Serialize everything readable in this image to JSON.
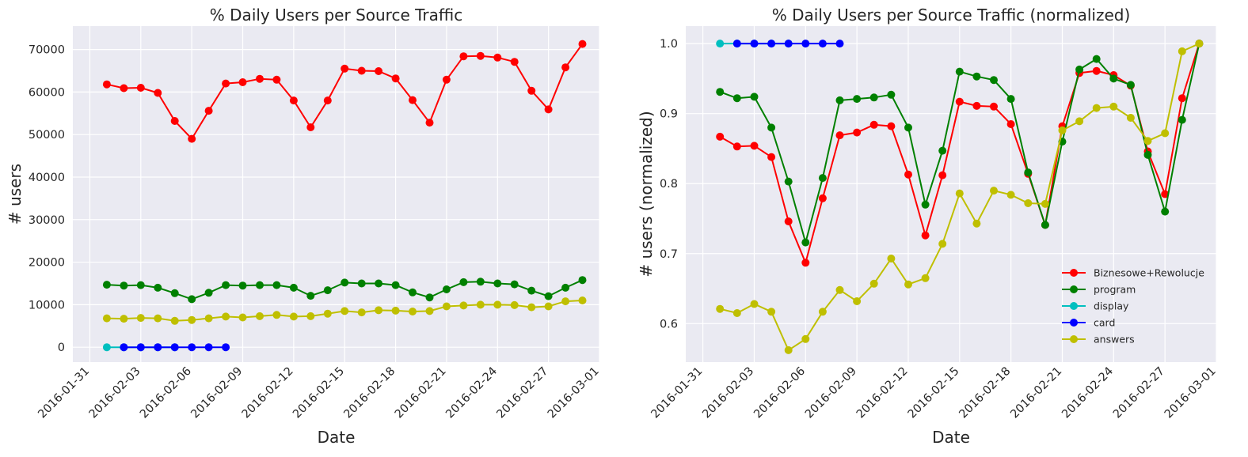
{
  "chart_data": [
    {
      "type": "line",
      "title": "% Daily Users per Source Traffic",
      "xlabel": "Date",
      "ylabel": "# users",
      "ylim": [
        -3500,
        75500
      ],
      "xlim": [
        "2016-01-30",
        "2016-03-01"
      ],
      "yticks": [
        "0",
        "10000",
        "20000",
        "30000",
        "40000",
        "50000",
        "60000",
        "70000"
      ],
      "ytick_values": [
        0,
        10000,
        20000,
        30000,
        40000,
        50000,
        60000,
        70000
      ],
      "xticks": [
        "2016-01-31",
        "2016-02-03",
        "2016-02-06",
        "2016-02-09",
        "2016-02-12",
        "2016-02-15",
        "2016-02-18",
        "2016-02-21",
        "2016-02-24",
        "2016-02-27",
        "2016-03-01"
      ],
      "grid": true,
      "legend": "none",
      "series": [
        {
          "color": "#FF0000",
          "x": [
            "2016-02-01",
            "2016-02-02",
            "2016-02-03",
            "2016-02-04",
            "2016-02-05",
            "2016-02-06",
            "2016-02-07",
            "2016-02-08",
            "2016-02-09",
            "2016-02-10",
            "2016-02-11",
            "2016-02-12",
            "2016-02-13",
            "2016-02-14",
            "2016-02-15",
            "2016-02-16",
            "2016-02-17",
            "2016-02-18",
            "2016-02-19",
            "2016-02-20",
            "2016-02-21",
            "2016-02-22",
            "2016-02-23",
            "2016-02-24",
            "2016-02-25",
            "2016-02-26",
            "2016-02-27",
            "2016-02-28",
            "2016-02-29"
          ],
          "values": [
            61800,
            60900,
            61000,
            59800,
            53200,
            49000,
            55600,
            62000,
            62300,
            63100,
            62900,
            58000,
            51700,
            58000,
            65500,
            65000,
            64900,
            63200,
            58100,
            52800,
            62900,
            68400,
            68500,
            68100,
            67100,
            60300,
            55900,
            65800,
            71300
          ]
        },
        {
          "color": "#008000",
          "x": [
            "2016-02-01",
            "2016-02-02",
            "2016-02-03",
            "2016-02-04",
            "2016-02-05",
            "2016-02-06",
            "2016-02-07",
            "2016-02-08",
            "2016-02-09",
            "2016-02-10",
            "2016-02-11",
            "2016-02-12",
            "2016-02-13",
            "2016-02-14",
            "2016-02-15",
            "2016-02-16",
            "2016-02-17",
            "2016-02-18",
            "2016-02-19",
            "2016-02-20",
            "2016-02-21",
            "2016-02-22",
            "2016-02-23",
            "2016-02-24",
            "2016-02-25",
            "2016-02-26",
            "2016-02-27",
            "2016-02-28",
            "2016-02-29"
          ],
          "values": [
            14700,
            14500,
            14600,
            14000,
            12700,
            11300,
            12800,
            14600,
            14500,
            14600,
            14600,
            14000,
            12100,
            13400,
            15200,
            15000,
            15000,
            14600,
            12900,
            11700,
            13600,
            15300,
            15400,
            15000,
            14800,
            13300,
            12000,
            14000,
            15800
          ]
        },
        {
          "color": "#00BFBF",
          "x": [
            "2016-02-01",
            "2016-02-02",
            "2016-02-03",
            "2016-02-04",
            "2016-02-05"
          ],
          "values": [
            0,
            0,
            0,
            0,
            0
          ]
        },
        {
          "color": "#0000FF",
          "x": [
            "2016-02-02",
            "2016-02-03",
            "2016-02-04",
            "2016-02-05",
            "2016-02-06",
            "2016-02-07",
            "2016-02-08"
          ],
          "values": [
            0,
            0,
            0,
            0,
            0,
            0,
            0
          ]
        },
        {
          "color": "#BFBF00",
          "x": [
            "2016-02-01",
            "2016-02-02",
            "2016-02-03",
            "2016-02-04",
            "2016-02-05",
            "2016-02-06",
            "2016-02-07",
            "2016-02-08",
            "2016-02-09",
            "2016-02-10",
            "2016-02-11",
            "2016-02-12",
            "2016-02-13",
            "2016-02-14",
            "2016-02-15",
            "2016-02-16",
            "2016-02-17",
            "2016-02-18",
            "2016-02-19",
            "2016-02-20",
            "2016-02-21",
            "2016-02-22",
            "2016-02-23",
            "2016-02-24",
            "2016-02-25",
            "2016-02-26",
            "2016-02-27",
            "2016-02-28",
            "2016-02-29"
          ],
          "values": [
            6800,
            6700,
            6900,
            6800,
            6200,
            6400,
            6800,
            7200,
            7000,
            7300,
            7600,
            7200,
            7300,
            7900,
            8500,
            8200,
            8700,
            8600,
            8400,
            8500,
            9600,
            9800,
            10000,
            10000,
            9900,
            9400,
            9600,
            10800,
            11000
          ]
        }
      ]
    },
    {
      "type": "line",
      "title": "% Daily Users per Source Traffic (normalized)",
      "xlabel": "Date",
      "ylabel": "# users (normalized)",
      "ylim": [
        0.545,
        1.025
      ],
      "xlim": [
        "2016-01-30",
        "2016-03-01"
      ],
      "yticks": [
        "0.6",
        "0.7",
        "0.8",
        "0.9",
        "1.0"
      ],
      "ytick_values": [
        0.6,
        0.7,
        0.8,
        0.9,
        1.0
      ],
      "xticks": [
        "2016-01-31",
        "2016-02-03",
        "2016-02-06",
        "2016-02-09",
        "2016-02-12",
        "2016-02-15",
        "2016-02-18",
        "2016-02-21",
        "2016-02-24",
        "2016-02-27",
        "2016-03-01"
      ],
      "grid": true,
      "legend": "lower-right",
      "series": [
        {
          "name": "Biznesowe+Rewolucje",
          "color": "#FF0000",
          "x": [
            "2016-02-01",
            "2016-02-02",
            "2016-02-03",
            "2016-02-04",
            "2016-02-05",
            "2016-02-06",
            "2016-02-07",
            "2016-02-08",
            "2016-02-09",
            "2016-02-10",
            "2016-02-11",
            "2016-02-12",
            "2016-02-13",
            "2016-02-14",
            "2016-02-15",
            "2016-02-16",
            "2016-02-17",
            "2016-02-18",
            "2016-02-19",
            "2016-02-20",
            "2016-02-21",
            "2016-02-22",
            "2016-02-23",
            "2016-02-24",
            "2016-02-25",
            "2016-02-26",
            "2016-02-27",
            "2016-02-28",
            "2016-02-29"
          ],
          "values": [
            0.867,
            0.853,
            0.854,
            0.838,
            0.746,
            0.687,
            0.779,
            0.869,
            0.873,
            0.884,
            0.882,
            0.813,
            0.726,
            0.812,
            0.917,
            0.911,
            0.91,
            0.885,
            0.814,
            0.741,
            0.882,
            0.958,
            0.961,
            0.955,
            0.94,
            0.846,
            0.785,
            0.922,
            1.0
          ]
        },
        {
          "name": "program",
          "color": "#008000",
          "x": [
            "2016-02-01",
            "2016-02-02",
            "2016-02-03",
            "2016-02-04",
            "2016-02-05",
            "2016-02-06",
            "2016-02-07",
            "2016-02-08",
            "2016-02-09",
            "2016-02-10",
            "2016-02-11",
            "2016-02-12",
            "2016-02-13",
            "2016-02-14",
            "2016-02-15",
            "2016-02-16",
            "2016-02-17",
            "2016-02-18",
            "2016-02-19",
            "2016-02-20",
            "2016-02-21",
            "2016-02-22",
            "2016-02-23",
            "2016-02-24",
            "2016-02-25",
            "2016-02-26",
            "2016-02-27",
            "2016-02-28",
            "2016-02-29"
          ],
          "values": [
            0.931,
            0.922,
            0.924,
            0.88,
            0.803,
            0.716,
            0.808,
            0.919,
            0.921,
            0.923,
            0.927,
            0.88,
            0.77,
            0.847,
            0.96,
            0.953,
            0.948,
            0.921,
            0.816,
            0.741,
            0.86,
            0.963,
            0.978,
            0.95,
            0.941,
            0.841,
            0.76,
            0.891,
            1.0
          ]
        },
        {
          "name": "display",
          "color": "#00BFBF",
          "x": [
            "2016-02-01",
            "2016-02-02",
            "2016-02-03",
            "2016-02-04",
            "2016-02-05"
          ],
          "values": [
            1.0,
            1.0,
            1.0,
            1.0,
            1.0
          ]
        },
        {
          "name": "card",
          "color": "#0000FF",
          "x": [
            "2016-02-02",
            "2016-02-03",
            "2016-02-04",
            "2016-02-05",
            "2016-02-06",
            "2016-02-07",
            "2016-02-08"
          ],
          "values": [
            1.0,
            1.0,
            1.0,
            1.0,
            1.0,
            1.0,
            1.0
          ]
        },
        {
          "name": "answers",
          "color": "#BFBF00",
          "x": [
            "2016-02-01",
            "2016-02-02",
            "2016-02-03",
            "2016-02-04",
            "2016-02-05",
            "2016-02-06",
            "2016-02-07",
            "2016-02-08",
            "2016-02-09",
            "2016-02-10",
            "2016-02-11",
            "2016-02-12",
            "2016-02-13",
            "2016-02-14",
            "2016-02-15",
            "2016-02-16",
            "2016-02-17",
            "2016-02-18",
            "2016-02-19",
            "2016-02-20",
            "2016-02-21",
            "2016-02-22",
            "2016-02-23",
            "2016-02-24",
            "2016-02-25",
            "2016-02-26",
            "2016-02-27",
            "2016-02-28",
            "2016-02-29"
          ],
          "values": [
            0.621,
            0.615,
            0.628,
            0.617,
            0.562,
            0.578,
            0.617,
            0.648,
            0.632,
            0.657,
            0.693,
            0.656,
            0.665,
            0.714,
            0.786,
            0.743,
            0.79,
            0.784,
            0.772,
            0.771,
            0.876,
            0.889,
            0.908,
            0.91,
            0.894,
            0.861,
            0.872,
            0.989,
            1.0
          ]
        }
      ]
    }
  ]
}
